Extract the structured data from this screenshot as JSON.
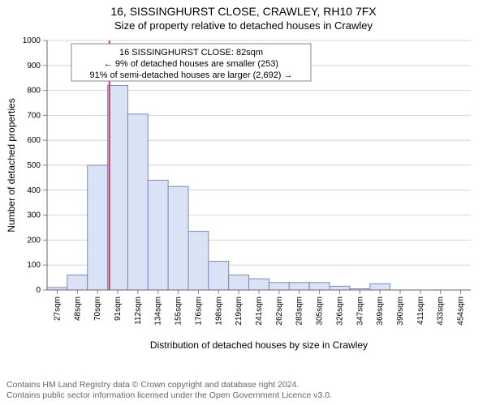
{
  "header": {
    "address": "16, SISSINGHURST CLOSE, CRAWLEY, RH10 7FX",
    "subtitle": "Size of property relative to detached houses in Crawley"
  },
  "annotation": {
    "line1": "16 SISSINGHURST CLOSE: 82sqm",
    "line2": "← 9% of detached houses are smaller (253)",
    "line3": "91% of semi-detached houses are larger (2,692) →",
    "border_color": "#888888",
    "bg_color": "#ffffff",
    "text_color": "#000000",
    "fontsize": 11
  },
  "chart": {
    "type": "histogram",
    "xlabel": "Distribution of detached houses by size in Crawley",
    "ylabel": "Number of detached properties",
    "label_fontsize": 12,
    "ylim": [
      0,
      1000
    ],
    "ytick_step": 100,
    "x_categories": [
      "27sqm",
      "48sqm",
      "70sqm",
      "91sqm",
      "112sqm",
      "134sqm",
      "155sqm",
      "176sqm",
      "198sqm",
      "219sqm",
      "241sqm",
      "262sqm",
      "283sqm",
      "305sqm",
      "326sqm",
      "347sqm",
      "369sqm",
      "390sqm",
      "411sqm",
      "433sqm",
      "454sqm"
    ],
    "values": [
      10,
      60,
      500,
      820,
      705,
      440,
      415,
      235,
      115,
      60,
      45,
      30,
      30,
      30,
      15,
      5,
      25,
      0,
      0,
      0,
      0
    ],
    "bar_fill": "#d9e3f5",
    "bar_stroke": "#7b8bb5",
    "axis_color": "#666666",
    "grid_color": "#d4d4d4",
    "tick_color": "#888888",
    "background_color": "#ffffff",
    "marker_line_color": "#c43a48",
    "marker_x_value": 82,
    "x_min": 16,
    "x_max": 465,
    "tick_fontsize": 10
  },
  "footer": {
    "line1": "Contains HM Land Registry data © Crown copyright and database right 2024.",
    "line2": "Contains public sector information licensed under the Open Government Licence v3.0."
  }
}
